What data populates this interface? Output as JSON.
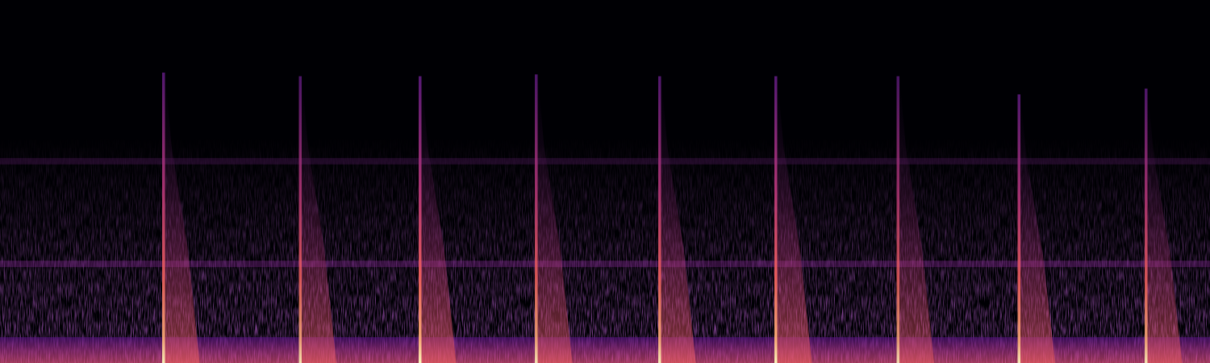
{
  "chart_data": {
    "type": "spectrogram",
    "xlim": [
      0,
      100
    ],
    "ylim": [
      0,
      100
    ],
    "tick_labels": false,
    "grid": false,
    "events": [
      {
        "time": 13.5,
        "top_frequency": 80,
        "intensity": 0.9
      },
      {
        "time": 24.8,
        "top_frequency": 79,
        "intensity": 0.85
      },
      {
        "time": 34.7,
        "top_frequency": 79,
        "intensity": 0.95
      },
      {
        "time": 44.3,
        "top_frequency": 79.5,
        "intensity": 0.85
      },
      {
        "time": 54.5,
        "top_frequency": 79,
        "intensity": 0.9
      },
      {
        "time": 64.1,
        "top_frequency": 79,
        "intensity": 0.95
      },
      {
        "time": 74.2,
        "top_frequency": 79,
        "intensity": 0.8
      },
      {
        "time": 84.2,
        "top_frequency": 74,
        "intensity": 0.9
      },
      {
        "time": 94.7,
        "top_frequency": 75.6,
        "intensity": 0.85
      }
    ],
    "bands": [
      {
        "frequency": 55.6,
        "intensity": 0.35
      },
      {
        "frequency": 27.3,
        "intensity": 0.6
      },
      {
        "frequency": 4,
        "intensity": 0.9
      }
    ]
  }
}
